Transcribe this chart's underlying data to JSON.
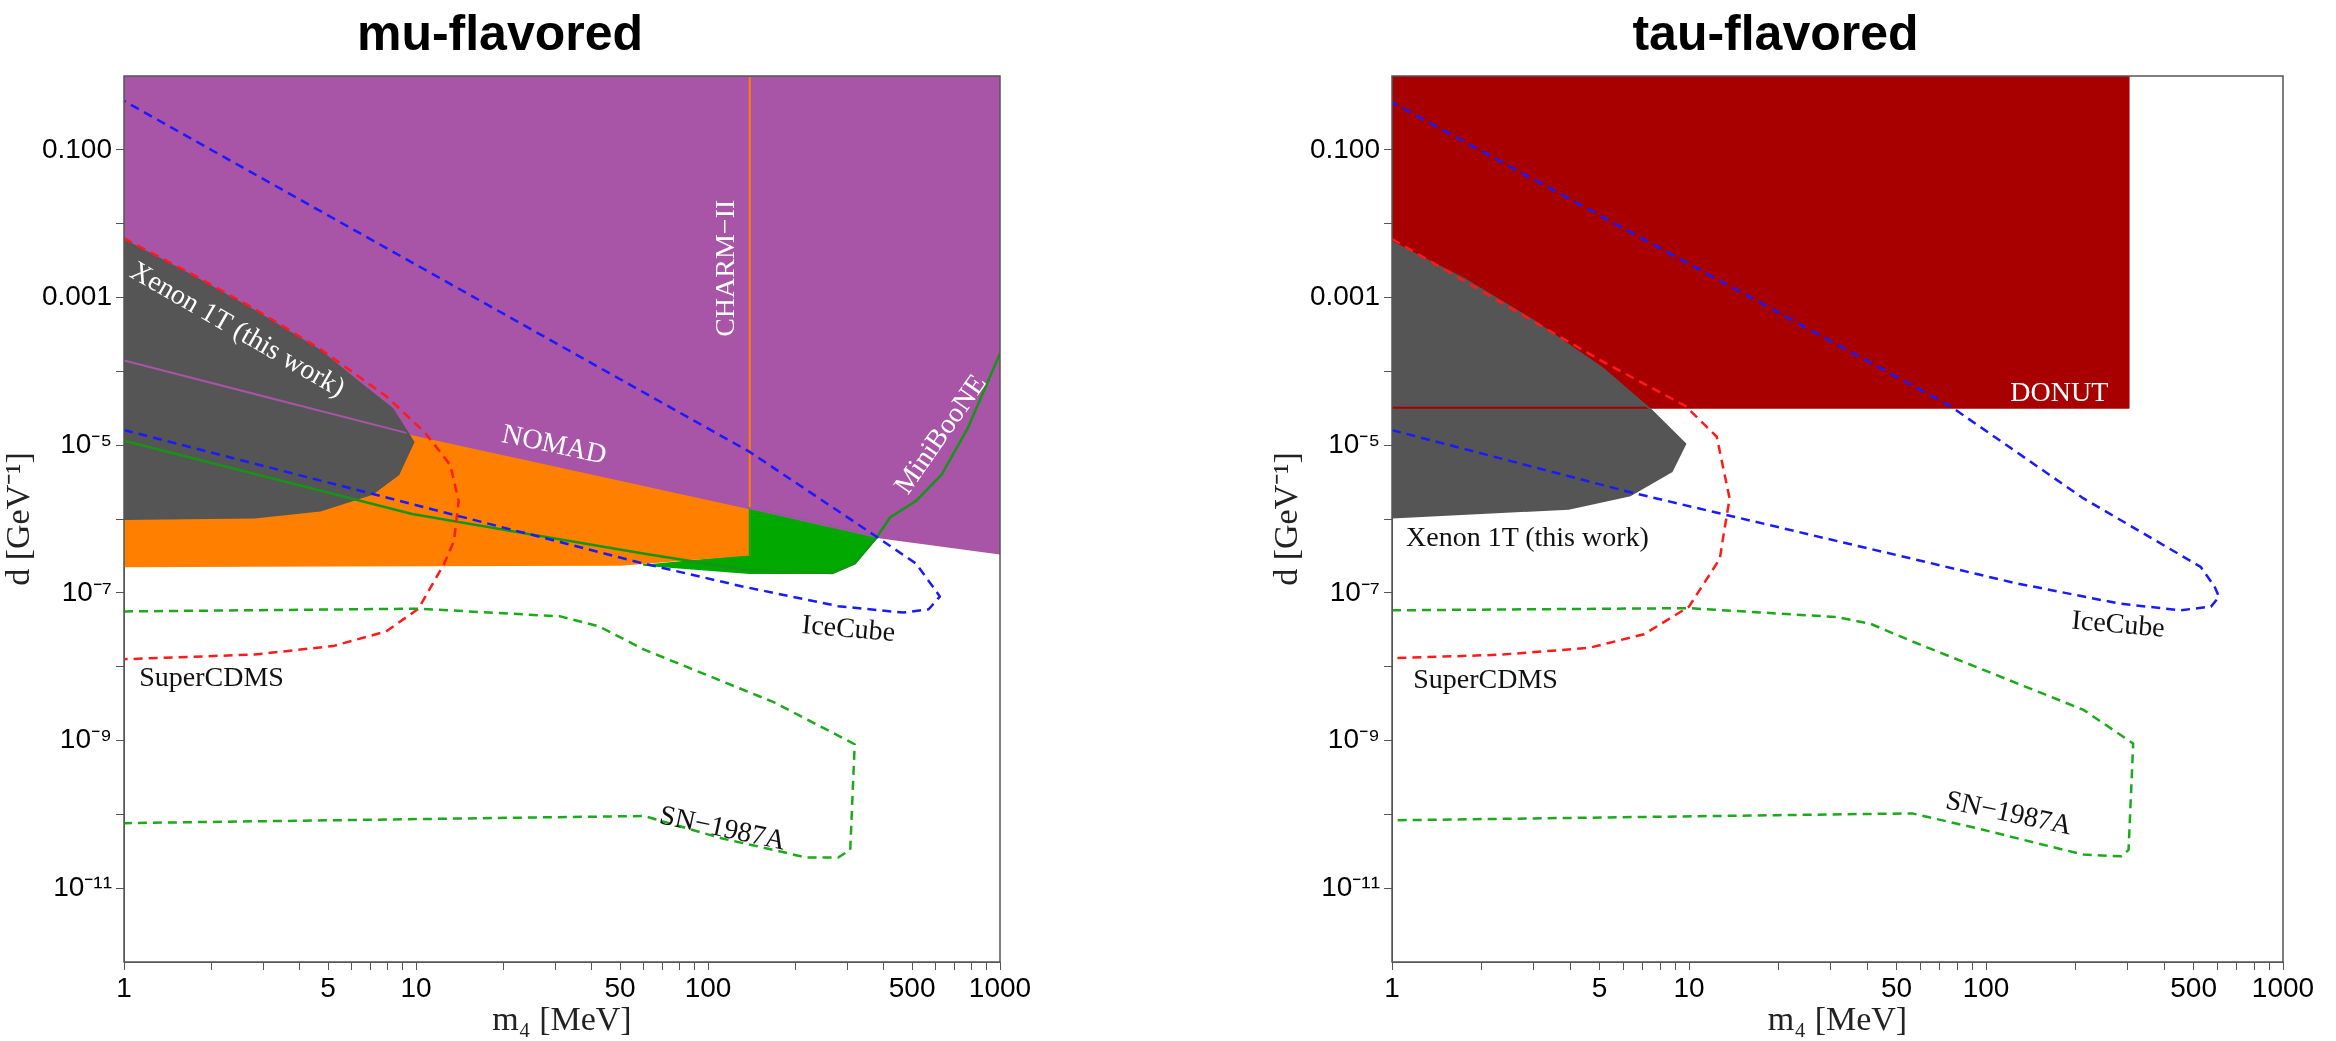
{
  "chart_data": [
    {
      "type": "line",
      "title": "mu-flavored",
      "xlabel": "m₄ [MeV]",
      "ylabel": "d [GeV⁻¹]",
      "log": "xy",
      "xlim": [
        1,
        1000
      ],
      "ylim": [
        1e-12,
        1
      ],
      "xticks": [
        1,
        {
          "value": 2,
          "label": null
        },
        {
          "value": 3,
          "label": null
        },
        {
          "value": 4,
          "label": null
        },
        5,
        {
          "value": 6,
          "label": null
        },
        {
          "value": 7,
          "label": null
        },
        {
          "value": 8,
          "label": null
        },
        {
          "value": 9,
          "label": null
        },
        10,
        {
          "value": 20,
          "label": null
        },
        {
          "value": 30,
          "label": null
        },
        {
          "value": 40,
          "label": null
        },
        50,
        {
          "value": 60,
          "label": null
        },
        {
          "value": 70,
          "label": null
        },
        {
          "value": 80,
          "label": null
        },
        {
          "value": 90,
          "label": null
        },
        100,
        {
          "value": 200,
          "label": null
        },
        {
          "value": 300,
          "label": null
        },
        {
          "value": 400,
          "label": null
        },
        500,
        {
          "value": 600,
          "label": null
        },
        {
          "value": 700,
          "label": null
        },
        {
          "value": 800,
          "label": null
        },
        {
          "value": 900,
          "label": null
        },
        1000
      ],
      "yticks": [
        {
          "value": 1e-11,
          "label": "10⁻¹¹"
        },
        {
          "value": 1e-10,
          "label": null
        },
        {
          "value": 1e-09,
          "label": "10⁻⁹"
        },
        {
          "value": 1e-08,
          "label": null
        },
        {
          "value": 1e-07,
          "label": "10⁻⁷"
        },
        {
          "value": 1e-06,
          "label": null
        },
        {
          "value": 1e-05,
          "label": "10⁻⁵"
        },
        {
          "value": 0.0001,
          "label": null
        },
        {
          "value": 0.001,
          "label": "0.001"
        },
        {
          "value": 0.01,
          "label": null
        },
        {
          "value": 0.1,
          "label": "0.100"
        }
      ],
      "series": [
        {
          "type": "area",
          "color": "#ff8000",
          "x": [
            1,
            50,
            139,
            139,
            1
          ],
          "values": [
            2.3e-07,
            2.4e-07,
            3.3e-07,
            1,
            1
          ]
        },
        {
          "type": "area",
          "color": "#00a800",
          "x": [
            60,
            139,
            266,
            318,
            379,
            139,
            139
          ],
          "values": [
            2.4e-07,
            1.85e-07,
            1.85e-07,
            2.5e-07,
            5.7e-07,
            1.4e-06,
            3.3e-07
          ]
        },
        {
          "type": "area",
          "color": "#a855a8",
          "x": [
            1,
            9.7,
            139,
            379,
            1000,
            1000,
            1
          ],
          "values": [
            0.00014,
            1.4e-05,
            1.4e-06,
            5.7e-07,
            3.4e-07,
            1,
            1
          ]
        },
        {
          "type": "area",
          "color": "#555555",
          "x": [
            1,
            1.7,
            2.8,
            4.7,
            6.4,
            8.3,
            9.8,
            8.7,
            7.1,
            4.7,
            2.8,
            1
          ],
          "values": [
            0.006,
            0.002,
            0.00066,
            0.00019,
            7e-05,
            3.1e-05,
            1.1e-05,
            4e-06,
            2.2e-06,
            1.3e-06,
            1.05e-06,
            1e-06
          ]
        },
        {
          "type": "line",
          "color": "#149614",
          "line_style": "solid",
          "x": [
            1,
            9.7,
            60,
            139,
            266,
            318,
            379,
            420,
            515,
            631,
            774,
            1000
          ],
          "values": [
            1.15e-05,
            1.17e-06,
            3.4e-07,
            2e-07,
            1.85e-07,
            2.5e-07,
            5.7e-07,
            1.05e-06,
            1.75e-06,
            4e-06,
            1.67e-05,
            0.000175
          ]
        },
        {
          "type": "line",
          "color": "#ff1a1a",
          "line_style": "dashed",
          "x": [
            1,
            1.7,
            2.8,
            4.7,
            7.9,
            10.7,
            13.1,
            14,
            13.5,
            12.5,
            10.2,
            7.9,
            5.2,
            2.8,
            1
          ],
          "values": [
            0.0063,
            0.0021,
            0.0007,
            0.0002,
            4.6e-05,
            1.5e-05,
            5.4e-06,
            1.75e-06,
            5.1e-07,
            2.5e-07,
            6.1e-08,
            3e-08,
            1.9e-08,
            1.46e-08,
            1.26e-08
          ]
        },
        {
          "type": "line",
          "color": "#1a1aff",
          "line_style": "dashed",
          "x": [
            1,
            60,
            130,
            279,
            466,
            570,
            622,
            600,
            515,
            379,
            139,
            1
          ],
          "values": [
            1.6e-05,
            2.5e-07,
            1.23e-07,
            6.6e-08,
            5.4e-08,
            6e-08,
            8.9e-08,
            1.1e-07,
            2.5e-07,
            5.7e-07,
            8.1e-06,
            0.46
          ]
        },
        {
          "type": "line",
          "color": "#1aaa1a",
          "line_style": "dashed",
          "x": [
            1,
            10.2,
            31.2,
            42.4,
            60.5,
            168,
            318,
            307,
            279,
            217,
            152,
            112,
            60.5,
            1
          ],
          "values": [
            5.6e-08,
            6.1e-08,
            4.8e-08,
            3.5e-08,
            1.7e-08,
            3.3e-09,
            8.9e-10,
            3.3e-11,
            2.6e-11,
            2.6e-11,
            3.6e-11,
            4.7e-11,
            9.5e-11,
            7.6e-11
          ]
        }
      ],
      "annotations": [
        "Xenon 1T (this work)",
        "CHARM−II",
        "NOMAD",
        "MiniBooNE",
        "IceCube",
        "SuperCDMS",
        "SN−1987A"
      ]
    },
    {
      "type": "line",
      "title": "tau-flavored",
      "xlabel": "m₄ [MeV]",
      "ylabel": "d [GeV⁻¹]",
      "log": "xy",
      "xlim": [
        1,
        1000
      ],
      "ylim": [
        1e-12,
        1
      ],
      "xticks": [
        1,
        {
          "value": 2,
          "label": null
        },
        {
          "value": 3,
          "label": null
        },
        {
          "value": 4,
          "label": null
        },
        5,
        {
          "value": 6,
          "label": null
        },
        {
          "value": 7,
          "label": null
        },
        {
          "value": 8,
          "label": null
        },
        {
          "value": 9,
          "label": null
        },
        10,
        {
          "value": 20,
          "label": null
        },
        {
          "value": 30,
          "label": null
        },
        {
          "value": 40,
          "label": null
        },
        50,
        {
          "value": 60,
          "label": null
        },
        {
          "value": 70,
          "label": null
        },
        {
          "value": 80,
          "label": null
        },
        {
          "value": 90,
          "label": null
        },
        100,
        {
          "value": 200,
          "label": null
        },
        {
          "value": 300,
          "label": null
        },
        {
          "value": 400,
          "label": null
        },
        500,
        {
          "value": 600,
          "label": null
        },
        {
          "value": 700,
          "label": null
        },
        {
          "value": 800,
          "label": null
        },
        {
          "value": 900,
          "label": null
        },
        1000
      ],
      "yticks": [
        {
          "value": 1e-11,
          "label": "10⁻¹¹"
        },
        {
          "value": 1e-10,
          "label": null
        },
        {
          "value": 1e-09,
          "label": "10⁻⁹"
        },
        {
          "value": 1e-08,
          "label": null
        },
        {
          "value": 1e-07,
          "label": "10⁻⁷"
        },
        {
          "value": 1e-06,
          "label": null
        },
        {
          "value": 1e-05,
          "label": "10⁻⁵"
        },
        {
          "value": 0.0001,
          "label": null
        },
        {
          "value": 0.001,
          "label": "0.001"
        },
        {
          "value": 0.01,
          "label": null
        },
        {
          "value": 0.1,
          "label": "0.100"
        }
      ],
      "series": [
        {
          "type": "area",
          "color": "#a80000",
          "x": [
            1,
            302,
            302,
            1
          ],
          "values": [
            3.2e-05,
            3.2e-05,
            1,
            1
          ]
        },
        {
          "type": "area",
          "color": "#555555",
          "x": [
            1,
            1.77,
            3.01,
            5.13,
            7.45,
            9.72,
            8.74,
            6.35,
            3.93,
            1
          ],
          "values": [
            0.0056,
            0.00174,
            0.00048,
            0.000109,
            3e-05,
            1.04e-05,
            4.4e-06,
            2.1e-06,
            1.38e-06,
            1.05e-06
          ]
        },
        {
          "type": "line",
          "color": "#ff1a1a",
          "line_style": "dashed",
          "x": [
            1,
            5.13,
            9.72,
            12.4,
            13.7,
            13,
            12.7,
            10,
            7.06,
            4.61,
            2.31,
            1
          ],
          "values": [
            0.0062,
            0.000135,
            3.4e-05,
            1.3e-05,
            1.9e-06,
            5.3e-07,
            2.9e-07,
            6.5e-08,
            2.75e-08,
            1.8e-08,
            1.45e-08,
            1.3e-08
          ]
        },
        {
          "type": "line",
          "color": "#1a1aff",
          "line_style": "dashed",
          "x": [
            1,
            6.35,
            125,
            279,
            450,
            572,
            609,
            588,
            528,
            213,
            75.6,
            1
          ],
          "values": [
            1.6e-05,
            2.3e-06,
            1.36e-07,
            7.2e-08,
            5.8e-08,
            6.5e-08,
            8.8e-08,
            1.22e-07,
            2.25e-07,
            1.9e-06,
            3.4e-05,
            0.44
          ]
        },
        {
          "type": "line",
          "color": "#1aaa1a",
          "line_style": "dashed",
          "x": [
            1,
            10,
            31.4,
            40.9,
            56.4,
            213,
            313,
            302,
            286,
            213,
            147,
            96,
            56.4,
            1
          ],
          "values": [
            5.8e-08,
            6.2e-08,
            4.7e-08,
            3.8e-08,
            2.2e-08,
            2.6e-09,
            9.1e-10,
            3.3e-11,
            2.7e-11,
            2.85e-11,
            4.1e-11,
            6.3e-11,
            1.03e-10,
            8.3e-11
          ]
        }
      ],
      "annotations": [
        "DONUT",
        "Xenon 1T (this work)",
        "IceCube",
        "SuperCDMS",
        "SN−1987A"
      ]
    }
  ]
}
